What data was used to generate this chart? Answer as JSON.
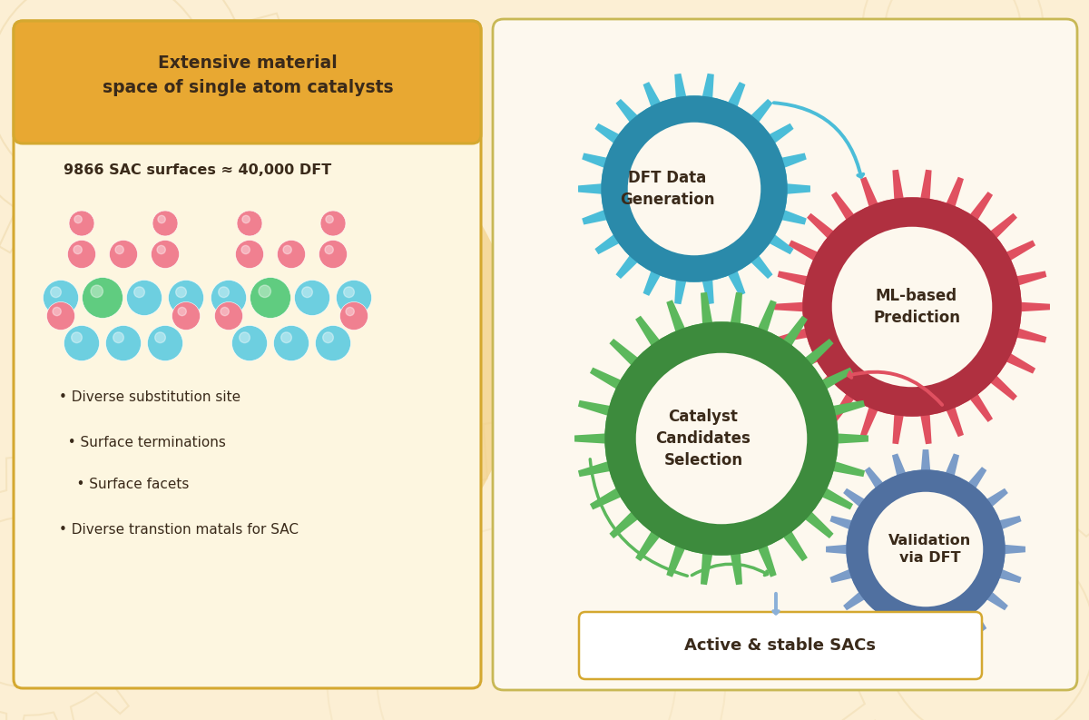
{
  "bg_color": "#fcefd4",
  "left_panel_bg": "#fdf6e0",
  "left_panel_border": "#d4a830",
  "left_header_bg": "#e8a832",
  "right_panel_bg": "#fdf8ee",
  "right_panel_border": "#c8b855",
  "title_text": "Extensive material\nspace of single atom catalysts",
  "subtitle_text": "9866 SAC surfaces ≈ 40,000 DFT",
  "bullet_points": [
    "• Diverse substitution site",
    "  • Surface terminations",
    "    • Surface facets",
    "• Diverse transtion matals for SAC"
  ],
  "gear_dft_label": "DFT Data\nGeneration",
  "gear_ml_label": "ML-based\nPrediction",
  "gear_catalyst_label": "Catalyst\nCandidates\nSelection",
  "gear_validation_label": "Validation\nvia DFT",
  "output_label": "Active & stable SACs",
  "gear_dft_outer": "#4bbdd8",
  "gear_dft_ring": "#2a8aaa",
  "gear_dft_inner_bg": "#fdf8ee",
  "gear_ml_outer": "#e05060",
  "gear_ml_ring": "#b03040",
  "gear_ml_inner_bg": "#fdf8ee",
  "gear_catalyst_outer": "#5cb85c",
  "gear_catalyst_ring": "#3d8b3d",
  "gear_catalyst_inner_bg": "#fdf8ee",
  "gear_validation_outer": "#7b9cc8",
  "gear_validation_ring": "#5070a0",
  "gear_validation_inner_bg": "#fdf8ee",
  "atom_cyan": "#6dcfe0",
  "atom_pink": "#f08090",
  "atom_green": "#60cc80",
  "text_dark": "#3a2a1a",
  "deco_color": "#d4b060",
  "funnel_color": "#f0c870",
  "arrow_dft_color": "#4bbdd8",
  "arrow_ml_color": "#e05060",
  "arrow_cat_color": "#5cb85c",
  "arrow_val_color": "#8ab0d8"
}
